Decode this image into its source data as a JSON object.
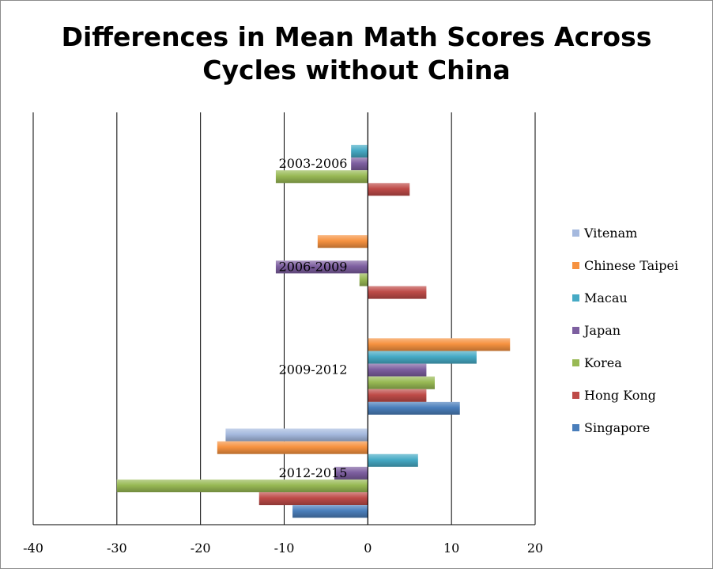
{
  "chart_data": {
    "type": "bar",
    "orientation": "horizontal",
    "title_line1": "Differences in Mean Math Scores Across",
    "title_line2": "Cycles without China",
    "xlim": [
      -40,
      20
    ],
    "xticks": [
      "-40",
      "-30",
      "-20",
      "-10",
      "0",
      "10",
      "20"
    ],
    "xtick_values": [
      -40,
      -30,
      -20,
      -10,
      0,
      10,
      20
    ],
    "grid": "vertical gridlines",
    "legend_position": "right",
    "categories": [
      "2003-2006",
      "2006-2009",
      "2009-2012",
      "2012-2015"
    ],
    "series": [
      {
        "name": "Singapore",
        "color": "#4a7ebb",
        "values": [
          null,
          null,
          11,
          -9
        ]
      },
      {
        "name": "Hong Kong",
        "color": "#be4b48",
        "values": [
          5,
          7,
          7,
          -13
        ]
      },
      {
        "name": "Korea",
        "color": "#98b954",
        "values": [
          -11,
          -1,
          8,
          -30
        ]
      },
      {
        "name": "Japan",
        "color": "#7d5fa0",
        "values": [
          -2,
          -11,
          7,
          -4
        ]
      },
      {
        "name": "Macau",
        "color": "#46aac5",
        "values": [
          -2,
          null,
          13,
          6
        ]
      },
      {
        "name": "Chinese Taipei",
        "color": "#f69240",
        "values": [
          null,
          -6,
          17,
          -18
        ]
      },
      {
        "name": "Vitenam",
        "color": "#a5b9de",
        "values": [
          null,
          null,
          null,
          -17
        ]
      }
    ]
  }
}
